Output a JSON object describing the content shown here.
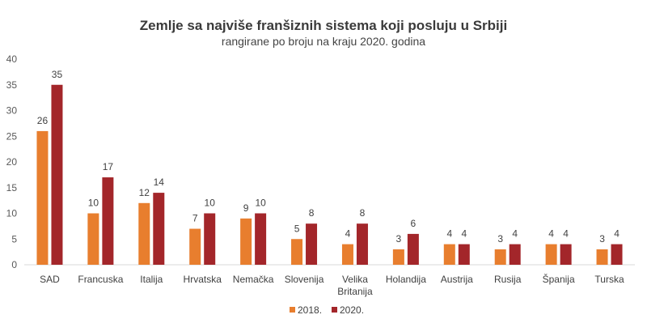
{
  "chart_data": {
    "type": "bar",
    "title": "Zemlje sa najviše franšiznih sistema koji posluju u Srbiji",
    "subtitle": "rangirane po broju na kraju 2020. godina",
    "categories": [
      [
        "SAD"
      ],
      [
        "Francuska"
      ],
      [
        "Italija"
      ],
      [
        "Hrvatska"
      ],
      [
        "Nemačka"
      ],
      [
        "Slovenija"
      ],
      [
        "Velika",
        "Britanija"
      ],
      [
        "Holandija"
      ],
      [
        "Austrija"
      ],
      [
        "Rusija"
      ],
      [
        "Španija"
      ],
      [
        "Turska"
      ]
    ],
    "series": [
      {
        "name": "2018.",
        "color": "#E87E2E",
        "values": [
          26,
          10,
          12,
          7,
          9,
          5,
          4,
          3,
          4,
          3,
          4,
          3
        ]
      },
      {
        "name": "2020.",
        "color": "#A3262A",
        "values": [
          35,
          17,
          14,
          10,
          10,
          8,
          8,
          6,
          4,
          4,
          4,
          4
        ]
      }
    ],
    "ylim": [
      0,
      40
    ],
    "yticks": [
      0,
      5,
      10,
      15,
      20,
      25,
      30,
      35,
      40
    ],
    "grid": false,
    "legend": "bottom-center",
    "xlabel": "",
    "ylabel": ""
  }
}
